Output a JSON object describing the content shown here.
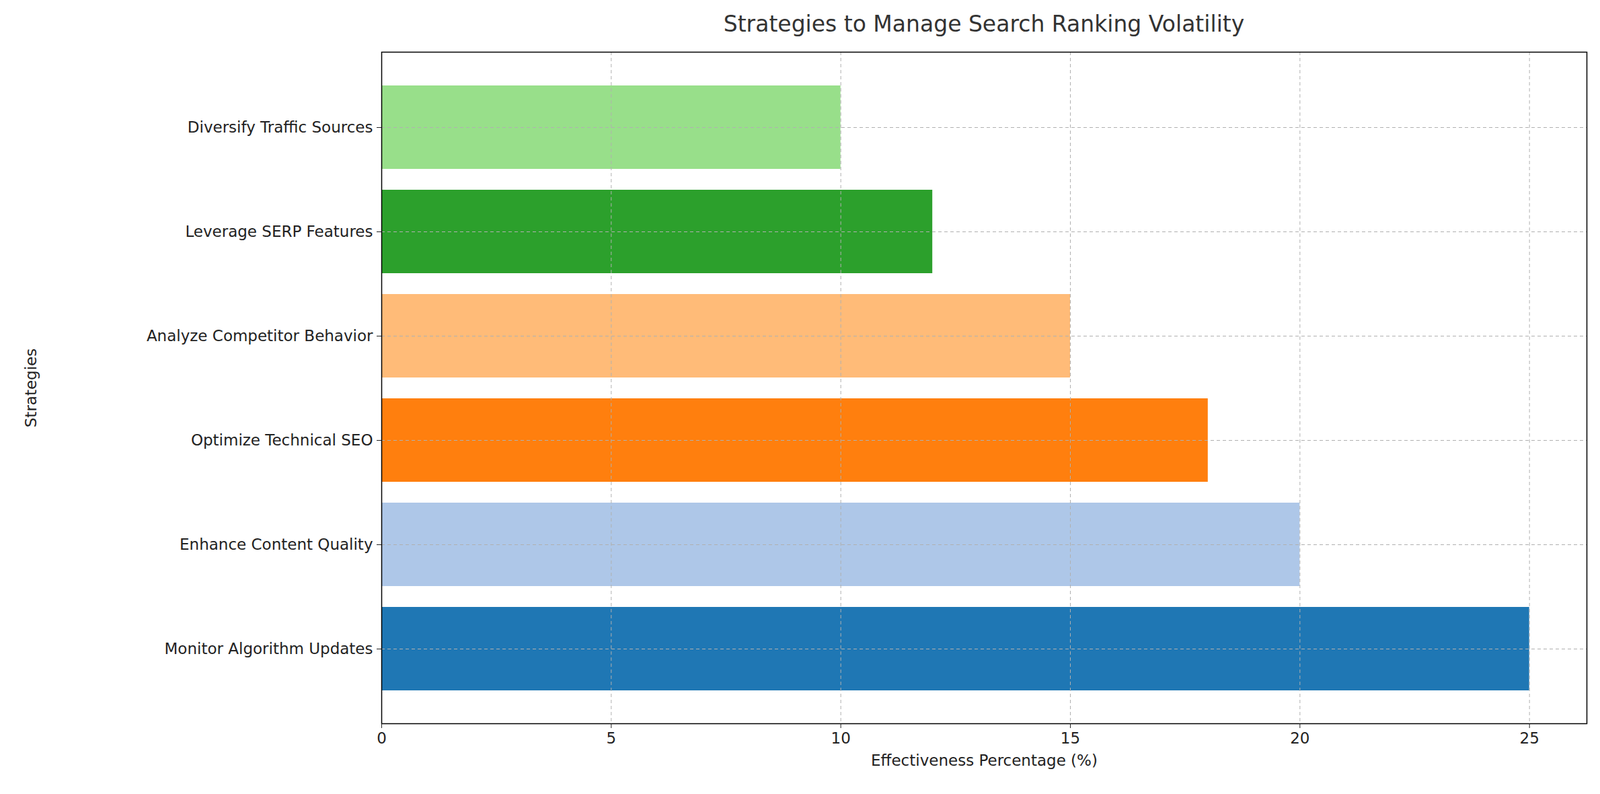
{
  "chart_data": {
    "type": "bar",
    "orientation": "horizontal",
    "title": "Strategies to Manage Search Ranking Volatility",
    "x_label": "Effectiveness Percentage (%)",
    "y_label": "Strategies",
    "categories": [
      "Diversify Traffic Sources",
      "Leverage SERP Features",
      "Analyze Competitor Behavior",
      "Optimize Technical SEO",
      "Enhance Content Quality",
      "Monitor Algorithm Updates"
    ],
    "values": [
      10,
      12,
      15,
      18,
      20,
      25
    ],
    "colors": [
      "#98df8a",
      "#2ca02c",
      "#ffbb78",
      "#ff7f0e",
      "#aec7e8",
      "#1f77b4"
    ],
    "xlim": [
      0,
      26.25
    ],
    "xticks": [
      0,
      5,
      10,
      15,
      20,
      25
    ],
    "grid": true
  }
}
